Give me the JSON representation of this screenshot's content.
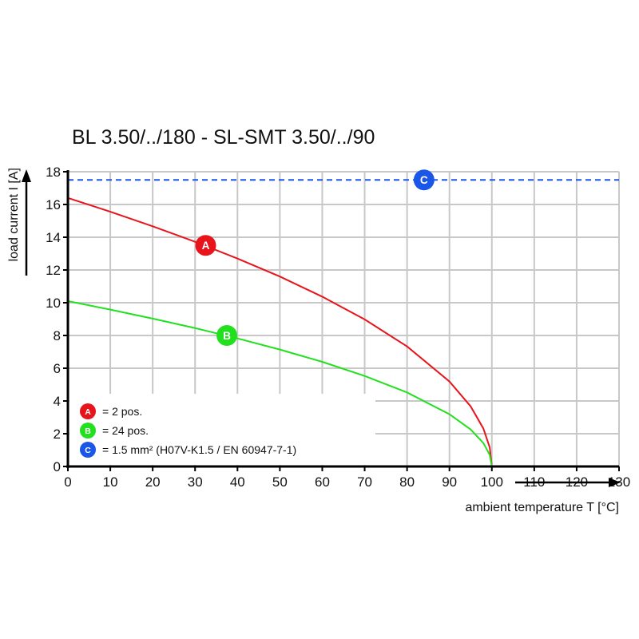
{
  "chart_data": {
    "type": "line",
    "title": "BL 3.50/../180 - SL-SMT 3.50/../90",
    "xlabel": "ambient temperature T [°C]",
    "ylabel": "load current I [A]",
    "xlim": [
      0,
      130
    ],
    "ylim": [
      0,
      18
    ],
    "xticks": [
      0,
      10,
      20,
      30,
      40,
      50,
      60,
      70,
      80,
      90,
      100,
      110,
      120,
      130
    ],
    "yticks": [
      0,
      2,
      4,
      6,
      8,
      10,
      12,
      14,
      16,
      18
    ],
    "grid": true,
    "legend_position": "bottom-left",
    "series": [
      {
        "key": "A",
        "name": "= 2 pos.",
        "color": "#e8141b",
        "marker_at": [
          32.5,
          13.5
        ],
        "x": [
          0,
          10,
          20,
          30,
          40,
          50,
          60,
          70,
          80,
          90,
          95,
          98,
          99.5,
          100
        ],
        "y": [
          16.4,
          15.56,
          14.67,
          13.72,
          12.7,
          11.6,
          10.37,
          8.98,
          7.33,
          5.19,
          3.67,
          2.32,
          1.16,
          0
        ]
      },
      {
        "key": "B",
        "name": "= 24 pos.",
        "color": "#22e01e",
        "marker_at": [
          37.5,
          8
        ],
        "x": [
          0,
          10,
          20,
          30,
          40,
          50,
          60,
          70,
          80,
          90,
          95,
          98,
          99.5,
          100
        ],
        "y": [
          10.1,
          9.58,
          9.03,
          8.45,
          7.82,
          7.14,
          6.39,
          5.53,
          4.52,
          3.19,
          2.26,
          1.43,
          0.71,
          0
        ]
      },
      {
        "key": "C",
        "name": "= 1.5 mm² (H07V-K1.5 / EN 60947-7-1)",
        "color": "#1a56e8",
        "dashed": true,
        "marker_at": [
          84,
          17.5
        ],
        "x": [
          0,
          130
        ],
        "y": [
          17.5,
          17.5
        ]
      }
    ]
  }
}
